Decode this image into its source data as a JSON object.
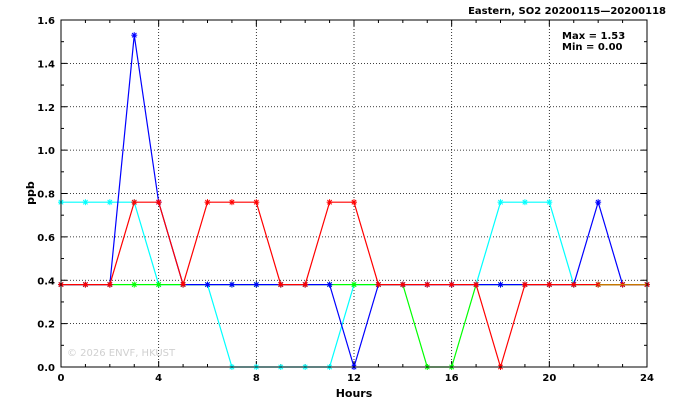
{
  "chart_data": {
    "type": "line",
    "title": "Eastern, SO2 20200115—20200118",
    "xlabel": "Hours",
    "ylabel": "ppb",
    "xlim": [
      0,
      24
    ],
    "ylim": [
      0,
      1.6
    ],
    "x_ticks": [
      0,
      4,
      8,
      12,
      16,
      20,
      24
    ],
    "y_ticks": [
      0.0,
      0.2,
      0.4,
      0.6,
      0.8,
      1.0,
      1.2,
      1.4,
      1.6
    ],
    "x_tick_labels": [
      "0",
      "4",
      "8",
      "12",
      "16",
      "20",
      "24"
    ],
    "y_tick_labels": [
      "0.0",
      "0.2",
      "0.4",
      "0.6",
      "0.8",
      "1.0",
      "1.2",
      "1.4",
      "1.6"
    ],
    "grid": true,
    "stats": {
      "max": "Max = 1.53",
      "min": "Min = 0.00"
    },
    "watermark": "© 2026  ENVF, HKUST",
    "x": [
      0,
      1,
      2,
      3,
      4,
      5,
      6,
      7,
      8,
      9,
      10,
      11,
      12,
      13,
      14,
      15,
      16,
      17,
      18,
      19,
      20,
      21,
      22,
      23,
      24
    ],
    "series": [
      {
        "color": "#00ffff",
        "values": [
          0.76,
          0.76,
          0.76,
          0.76,
          0.38,
          0.38,
          0.38,
          0.0,
          0.0,
          0.0,
          0.0,
          0.0,
          0.38,
          0.38,
          0.38,
          0.38,
          0.38,
          0.38,
          0.76,
          0.76,
          0.76,
          0.38,
          0.38,
          0.38,
          0.38
        ]
      },
      {
        "color": "#00ff00",
        "values": [
          0.38,
          0.38,
          0.38,
          0.38,
          0.38,
          0.38,
          0.38,
          0.38,
          0.38,
          0.38,
          0.38,
          0.38,
          0.38,
          0.38,
          0.38,
          0.0,
          0.0,
          0.38,
          0.38,
          0.38,
          0.38,
          0.38,
          0.38,
          0.38,
          0.38
        ]
      },
      {
        "color": "#0000ff",
        "values": [
          0.38,
          0.38,
          0.38,
          1.53,
          0.76,
          0.38,
          0.38,
          0.38,
          0.38,
          0.38,
          0.38,
          0.38,
          0.0,
          0.38,
          0.38,
          0.38,
          0.38,
          0.38,
          0.38,
          0.38,
          0.38,
          0.38,
          0.76,
          0.38,
          0.38
        ]
      },
      {
        "color": "#ff0000",
        "values": [
          0.38,
          0.38,
          0.38,
          0.76,
          0.76,
          0.38,
          0.76,
          0.76,
          0.76,
          0.38,
          0.38,
          0.76,
          0.76,
          0.38,
          0.38,
          0.38,
          0.38,
          0.38,
          0.0,
          0.38,
          0.38,
          0.38,
          0.38,
          0.38,
          0.38
        ]
      }
    ],
    "overlap_color": "#c87800"
  }
}
